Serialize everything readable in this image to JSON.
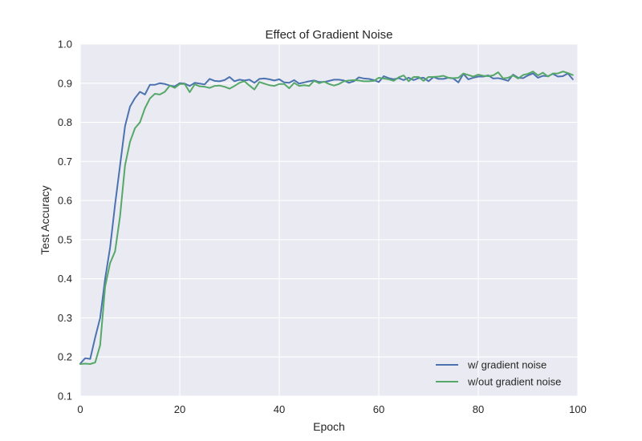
{
  "chart_data": {
    "type": "line",
    "title": "Effect of Gradient Noise",
    "xlabel": "Epoch",
    "ylabel": "Test Accuracy",
    "xlim": [
      0,
      100
    ],
    "ylim": [
      0.1,
      1.0
    ],
    "xticks": [
      "0",
      "20",
      "40",
      "60",
      "80",
      "100"
    ],
    "yticks": [
      "0.1",
      "0.2",
      "0.3",
      "0.4",
      "0.5",
      "0.6",
      "0.7",
      "0.8",
      "0.9",
      "1.0"
    ],
    "grid": true,
    "legend_position": "lower-right",
    "background_color": "#EAEAF2",
    "x": [
      0,
      1,
      2,
      3,
      4,
      5,
      6,
      7,
      8,
      9,
      10,
      11,
      12,
      13,
      14,
      15,
      16,
      17,
      18,
      19,
      20,
      21,
      22,
      23,
      24,
      25,
      26,
      27,
      28,
      29,
      30,
      31,
      32,
      33,
      34,
      35,
      36,
      37,
      38,
      39,
      40,
      41,
      42,
      43,
      44,
      45,
      46,
      47,
      48,
      49,
      50,
      51,
      52,
      53,
      54,
      55,
      56,
      57,
      58,
      59,
      60,
      61,
      62,
      63,
      64,
      65,
      66,
      67,
      68,
      69,
      70,
      71,
      72,
      73,
      74,
      75,
      76,
      77,
      78,
      79,
      80,
      81,
      82,
      83,
      84,
      85,
      86,
      87,
      88,
      89,
      90,
      91,
      92,
      93,
      94,
      95,
      96,
      97,
      98,
      99
    ],
    "series": [
      {
        "name": "w/ gradient noise",
        "color": "#4C72B0",
        "values": [
          0.183,
          0.197,
          0.195,
          0.25,
          0.3,
          0.4,
          0.48,
          0.59,
          0.69,
          0.79,
          0.84,
          0.862,
          0.878,
          0.871,
          0.896,
          0.896,
          0.9,
          0.898,
          0.894,
          0.892,
          0.9,
          0.899,
          0.893,
          0.901,
          0.899,
          0.897,
          0.911,
          0.906,
          0.905,
          0.908,
          0.916,
          0.905,
          0.909,
          0.907,
          0.909,
          0.901,
          0.911,
          0.912,
          0.91,
          0.907,
          0.91,
          0.902,
          0.901,
          0.908,
          0.899,
          0.902,
          0.905,
          0.907,
          0.903,
          0.903,
          0.906,
          0.909,
          0.909,
          0.907,
          0.901,
          0.905,
          0.915,
          0.912,
          0.911,
          0.908,
          0.903,
          0.918,
          0.913,
          0.91,
          0.913,
          0.908,
          0.914,
          0.908,
          0.913,
          0.914,
          0.905,
          0.916,
          0.911,
          0.911,
          0.914,
          0.912,
          0.902,
          0.924,
          0.91,
          0.914,
          0.917,
          0.917,
          0.92,
          0.912,
          0.913,
          0.91,
          0.906,
          0.922,
          0.914,
          0.913,
          0.92,
          0.925,
          0.914,
          0.919,
          0.918,
          0.924,
          0.917,
          0.918,
          0.925,
          0.91
        ]
      },
      {
        "name": "w/out gradient noise",
        "color": "#55A868",
        "values": [
          0.182,
          0.183,
          0.182,
          0.186,
          0.23,
          0.38,
          0.44,
          0.47,
          0.56,
          0.69,
          0.75,
          0.785,
          0.8,
          0.836,
          0.861,
          0.873,
          0.871,
          0.878,
          0.894,
          0.888,
          0.898,
          0.898,
          0.877,
          0.897,
          0.892,
          0.891,
          0.888,
          0.893,
          0.894,
          0.891,
          0.886,
          0.893,
          0.901,
          0.905,
          0.894,
          0.884,
          0.903,
          0.899,
          0.895,
          0.893,
          0.898,
          0.898,
          0.887,
          0.901,
          0.893,
          0.895,
          0.893,
          0.906,
          0.9,
          0.904,
          0.898,
          0.894,
          0.898,
          0.905,
          0.907,
          0.908,
          0.907,
          0.905,
          0.905,
          0.906,
          0.914,
          0.912,
          0.91,
          0.906,
          0.915,
          0.92,
          0.905,
          0.916,
          0.916,
          0.906,
          0.916,
          0.916,
          0.917,
          0.919,
          0.914,
          0.913,
          0.914,
          0.925,
          0.921,
          0.917,
          0.922,
          0.919,
          0.918,
          0.92,
          0.928,
          0.912,
          0.914,
          0.92,
          0.912,
          0.921,
          0.924,
          0.93,
          0.92,
          0.927,
          0.917,
          0.925,
          0.925,
          0.93,
          0.926,
          0.921
        ]
      }
    ]
  }
}
